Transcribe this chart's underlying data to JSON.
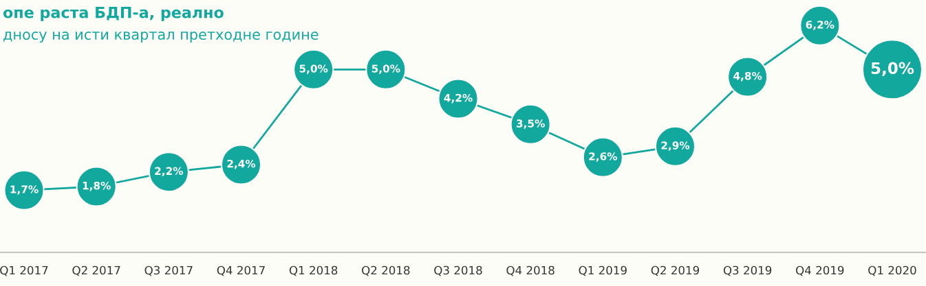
{
  "chart_data": {
    "type": "line",
    "title": "опе раста БДП-а, реално",
    "subtitle": "дносу на исти квартал претходне године",
    "categories": [
      "Q1 2017",
      "Q2 2017",
      "Q3 2017",
      "Q4 2017",
      "Q1 2018",
      "Q2 2018",
      "Q3 2018",
      "Q4 2018",
      "Q1 2019",
      "Q2 2019",
      "Q3 2019",
      "Q4 2019",
      "Q1 2020"
    ],
    "series": [
      {
        "color": "#13a89e",
        "values": [
          1.7,
          1.8,
          2.2,
          2.4,
          5.0,
          5.0,
          4.2,
          3.5,
          2.6,
          2.9,
          4.8,
          6.2,
          5.0
        ]
      },
      {
        "type": "bubble",
        "color": "#13a89e",
        "values": [
          1.7,
          1.8,
          2.2,
          2.4,
          5.0,
          5.0,
          4.2,
          3.5,
          2.6,
          2.9,
          4.8,
          6.2,
          5.0
        ],
        "sizes": [
          0.44,
          0.44,
          0.44,
          0.44,
          0.44,
          0.44,
          0.44,
          0.44,
          0.44,
          0.44,
          0.44,
          0.44,
          1
        ],
        "value_labels": [
          "1,7%",
          "1,8%",
          "2,2%",
          "2,4%",
          "5,0%",
          "5,0%",
          "4,2%",
          "3,5%",
          "2,6%",
          "2,9%",
          "4,8%",
          "6,2%",
          "5,0%"
        ]
      }
    ],
    "ylim": [
      0,
      6.9
    ],
    "tick_labels": "x",
    "line_style": "solid",
    "grid": false,
    "legend": false
  }
}
